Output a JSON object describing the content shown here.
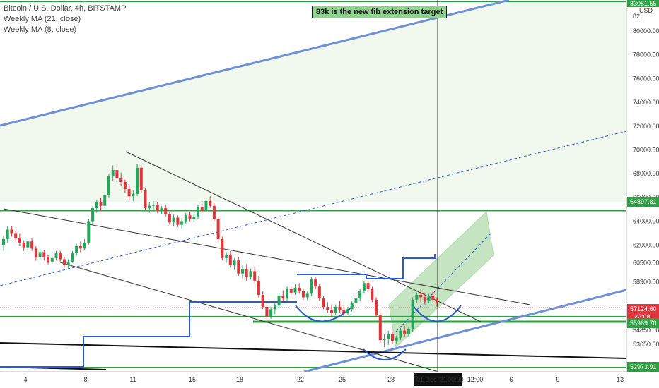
{
  "legend": {
    "title": "Bitcoin / U.S. Dollar, 4h, BITSTAMP",
    "ma21": "Weekly MA (21, close)",
    "ma8": "Weekly MA (8, close)"
  },
  "annotation": "83k is the new fib extension target",
  "currency": "USD",
  "colors": {
    "up": "#26a65b",
    "down": "#e0353b",
    "channel": "#6f8fd6",
    "ma": "#2a5bd7",
    "level": "#2ea043",
    "zone": "#e6f3df",
    "target": "#9ed39a"
  },
  "chart_data": {
    "type": "candlestick",
    "y_axis": {
      "ticks": [
        "80000.00",
        "78000.00",
        "76000.00",
        "74000.00",
        "72000.00",
        "70000.00",
        "68000.00",
        "66000.00",
        "64000.00",
        "62000.00",
        "60500.00",
        "58900.00",
        "54850.00",
        "53650.00"
      ],
      "top_label": "82",
      "top_label_2": "83051.55"
    },
    "x_axis": {
      "ticks": [
        "4",
        "8",
        "11",
        "15",
        "18",
        "22",
        "25",
        "28",
        "6",
        "9",
        "13",
        "12:00"
      ],
      "crosshair_label": "01 Dec '21",
      "crosshair_time": "00:00"
    },
    "price_badges": [
      {
        "label": "64897.81",
        "kind": "level"
      },
      {
        "label": "57124.60",
        "sub": "22:08",
        "kind": "last"
      },
      {
        "label": "55969.70",
        "kind": "level"
      },
      {
        "label": "52973.91",
        "kind": "level"
      }
    ],
    "candles": [
      [
        62000,
        62800,
        61500,
        62500
      ],
      [
        62500,
        63600,
        62200,
        63300
      ],
      [
        63300,
        63600,
        62700,
        63000
      ],
      [
        63000,
        63200,
        62300,
        62600
      ],
      [
        62600,
        63000,
        61900,
        62200
      ],
      [
        62200,
        62400,
        61500,
        61800
      ],
      [
        61800,
        62500,
        61600,
        62300
      ],
      [
        62300,
        62600,
        61500,
        61700
      ],
      [
        61700,
        61900,
        60700,
        61000
      ],
      [
        61000,
        61700,
        60800,
        61400
      ],
      [
        61400,
        61600,
        60700,
        61000
      ],
      [
        61000,
        61200,
        60300,
        60600
      ],
      [
        60600,
        61100,
        60400,
        60900
      ],
      [
        60900,
        61500,
        60700,
        61300
      ],
      [
        61300,
        61500,
        60600,
        60800
      ],
      [
        60800,
        61000,
        60100,
        60300
      ],
      [
        60300,
        60800,
        60000,
        60600
      ],
      [
        60600,
        61500,
        60500,
        61300
      ],
      [
        61300,
        62100,
        61100,
        61900
      ],
      [
        61900,
        62300,
        61400,
        61700
      ],
      [
        61700,
        62500,
        61600,
        62200
      ],
      [
        62200,
        64200,
        62000,
        64000
      ],
      [
        64000,
        65300,
        63800,
        65100
      ],
      [
        65100,
        65800,
        64700,
        65600
      ],
      [
        65600,
        66000,
        64900,
        65300
      ],
      [
        65300,
        66400,
        65100,
        66200
      ],
      [
        66200,
        68000,
        66000,
        67800
      ],
      [
        67800,
        68700,
        67400,
        68300
      ],
      [
        68300,
        68600,
        67300,
        67600
      ],
      [
        67600,
        68100,
        67000,
        67300
      ],
      [
        67300,
        67500,
        66400,
        66700
      ],
      [
        66700,
        67000,
        65800,
        66100
      ],
      [
        66100,
        66600,
        65700,
        66300
      ],
      [
        66300,
        68800,
        66100,
        68500
      ],
      [
        68500,
        68700,
        66400,
        66600
      ],
      [
        66600,
        66800,
        64900,
        65100
      ],
      [
        65100,
        65600,
        64700,
        65300
      ],
      [
        65300,
        65700,
        64900,
        65400
      ],
      [
        65400,
        65600,
        64700,
        64900
      ],
      [
        64900,
        65300,
        64600,
        65100
      ],
      [
        65100,
        65400,
        64400,
        64600
      ],
      [
        64600,
        64800,
        63700,
        63900
      ],
      [
        63900,
        64600,
        63600,
        64300
      ],
      [
        64300,
        64500,
        63500,
        63700
      ],
      [
        63700,
        64200,
        63400,
        64000
      ],
      [
        64000,
        64700,
        63800,
        64500
      ],
      [
        64500,
        64800,
        64000,
        64200
      ],
      [
        64200,
        64600,
        63900,
        64400
      ],
      [
        64400,
        65400,
        64200,
        65200
      ],
      [
        65200,
        65700,
        64700,
        64900
      ],
      [
        64900,
        65900,
        64700,
        65700
      ],
      [
        65700,
        66100,
        65100,
        65300
      ],
      [
        65300,
        65500,
        64000,
        64200
      ],
      [
        64200,
        64400,
        62300,
        62500
      ],
      [
        62500,
        62700,
        60700,
        60900
      ],
      [
        60900,
        61400,
        60500,
        61200
      ],
      [
        61200,
        61500,
        60100,
        60300
      ],
      [
        60300,
        60900,
        59900,
        60700
      ],
      [
        60700,
        61000,
        59400,
        59600
      ],
      [
        59600,
        60300,
        59200,
        60000
      ],
      [
        60000,
        60400,
        59000,
        59300
      ],
      [
        59300,
        60000,
        59100,
        59800
      ],
      [
        59800,
        60200,
        58800,
        59000
      ],
      [
        59000,
        59400,
        57600,
        57800
      ],
      [
        57800,
        58100,
        56600,
        56800
      ],
      [
        56800,
        57100,
        55700,
        56000
      ],
      [
        56000,
        56800,
        55800,
        56600
      ],
      [
        56600,
        57100,
        56200,
        56900
      ],
      [
        56900,
        57900,
        56700,
        57700
      ],
      [
        57700,
        58200,
        57300,
        57500
      ],
      [
        57500,
        58500,
        57300,
        58300
      ],
      [
        58300,
        58500,
        57800,
        58000
      ],
      [
        58000,
        58700,
        57800,
        58400
      ],
      [
        58400,
        58800,
        57900,
        58100
      ],
      [
        58100,
        58300,
        57400,
        57600
      ],
      [
        57600,
        58100,
        57400,
        57900
      ],
      [
        57900,
        59300,
        57700,
        59100
      ],
      [
        59100,
        59300,
        58300,
        58500
      ],
      [
        58500,
        58700,
        57300,
        57500
      ],
      [
        57500,
        57700,
        56600,
        56800
      ],
      [
        56800,
        57200,
        56300,
        56500
      ],
      [
        56500,
        57000,
        56000,
        56300
      ],
      [
        56300,
        57000,
        56100,
        56800
      ],
      [
        56800,
        57300,
        56300,
        56500
      ],
      [
        56500,
        56900,
        56000,
        56300
      ],
      [
        56300,
        56800,
        56100,
        56600
      ],
      [
        56600,
        57300,
        56400,
        57100
      ],
      [
        57100,
        57700,
        56900,
        57500
      ],
      [
        57500,
        58300,
        57300,
        58100
      ],
      [
        58100,
        59000,
        57900,
        58800
      ],
      [
        58800,
        59000,
        58100,
        58300
      ],
      [
        58300,
        58500,
        57200,
        57400
      ],
      [
        57400,
        57600,
        55900,
        56100
      ],
      [
        56100,
        56300,
        53800,
        54000
      ],
      [
        54000,
        54500,
        53400,
        54100
      ],
      [
        54100,
        54800,
        53600,
        54500
      ],
      [
        54500,
        54700,
        53700,
        53900
      ],
      [
        53900,
        54400,
        53700,
        54200
      ],
      [
        54200,
        55000,
        54000,
        54800
      ],
      [
        54800,
        55200,
        54300,
        54500
      ],
      [
        54500,
        55100,
        54300,
        54900
      ],
      [
        54900,
        57600,
        54700,
        57400
      ],
      [
        57400,
        58000,
        57100,
        57800
      ],
      [
        57800,
        58300,
        57200,
        57600
      ],
      [
        57600,
        58000,
        57000,
        57300
      ],
      [
        57300,
        57900,
        57100,
        57700
      ],
      [
        57700,
        58100,
        57200,
        57400
      ],
      [
        57400,
        57600,
        56800,
        57124.6
      ]
    ]
  }
}
